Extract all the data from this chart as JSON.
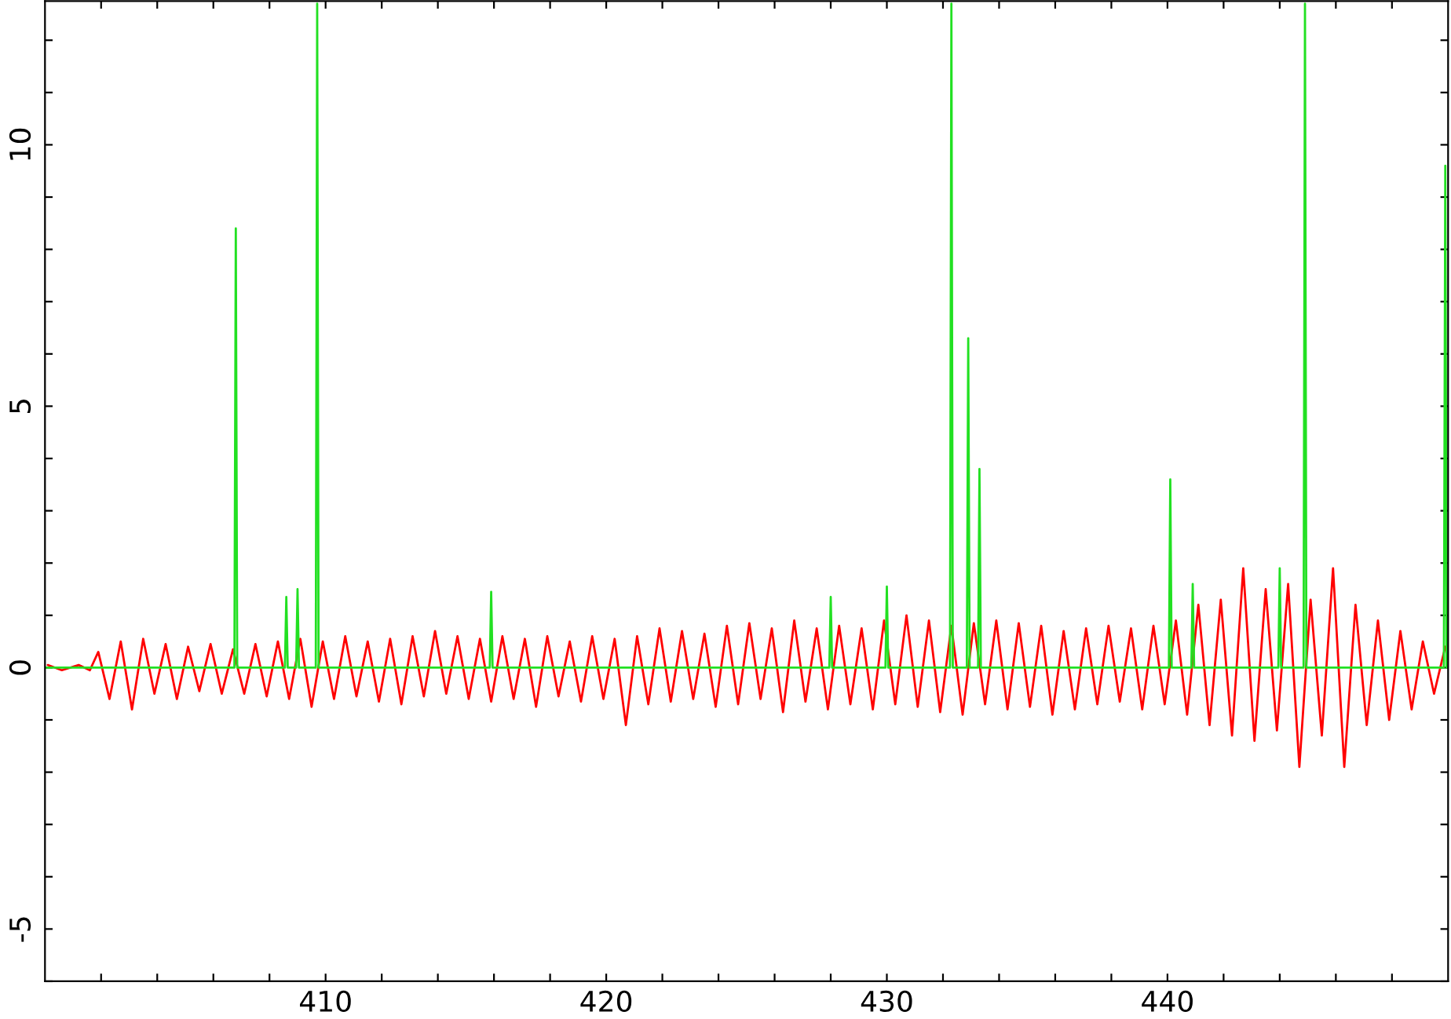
{
  "chart_data": {
    "type": "line",
    "xlim": [
      400,
      450
    ],
    "ylim": [
      -6,
      12.75
    ],
    "xticks": [
      {
        "value": 402,
        "label": null
      },
      {
        "value": 404,
        "label": null
      },
      {
        "value": 406,
        "label": null
      },
      {
        "value": 408,
        "label": null
      },
      410,
      {
        "value": 412,
        "label": null
      },
      {
        "value": 414,
        "label": null
      },
      {
        "value": 416,
        "label": null
      },
      {
        "value": 418,
        "label": null
      },
      420,
      {
        "value": 422,
        "label": null
      },
      {
        "value": 424,
        "label": null
      },
      {
        "value": 426,
        "label": null
      },
      {
        "value": 428,
        "label": null
      },
      430,
      {
        "value": 432,
        "label": null
      },
      {
        "value": 434,
        "label": null
      },
      {
        "value": 436,
        "label": null
      },
      {
        "value": 438,
        "label": null
      },
      440,
      {
        "value": 442,
        "label": null
      },
      {
        "value": 444,
        "label": null
      },
      {
        "value": 446,
        "label": null
      },
      {
        "value": 448,
        "label": null
      }
    ],
    "yticks": [
      {
        "value": -6,
        "label": null
      },
      -5,
      {
        "value": -4,
        "label": null
      },
      {
        "value": -3,
        "label": null
      },
      {
        "value": -2,
        "label": null
      },
      {
        "value": -1,
        "label": null
      },
      0,
      {
        "value": 1,
        "label": null
      },
      {
        "value": 2,
        "label": null
      },
      {
        "value": 3,
        "label": null
      },
      {
        "value": 4,
        "label": null
      },
      5,
      {
        "value": 6,
        "label": null
      },
      {
        "value": 7,
        "label": null
      },
      {
        "value": 8,
        "label": null
      },
      {
        "value": 9,
        "label": null
      },
      10,
      {
        "value": 11,
        "label": null
      },
      {
        "value": 12,
        "label": null
      }
    ],
    "grid": false,
    "legend": false,
    "marker": "none",
    "line_style": "solid",
    "series": [
      {
        "color": "#ff0000",
        "x": [
          400.1,
          400.6,
          401.2,
          401.6,
          401.9,
          402.3,
          402.7,
          403.1,
          403.5,
          403.9,
          404.3,
          404.7,
          405.1,
          405.5,
          405.9,
          406.3,
          406.7,
          407.1,
          407.5,
          407.9,
          408.3,
          408.7,
          409.1,
          409.5,
          409.9,
          410.3,
          410.7,
          411.1,
          411.5,
          411.9,
          412.3,
          412.7,
          413.1,
          413.5,
          413.9,
          414.3,
          414.7,
          415.1,
          415.5,
          415.9,
          416.3,
          416.7,
          417.1,
          417.5,
          417.9,
          418.3,
          418.7,
          419.1,
          419.5,
          419.9,
          420.3,
          420.7,
          421.1,
          421.5,
          421.9,
          422.3,
          422.7,
          423.1,
          423.5,
          423.9,
          424.3,
          424.7,
          425.1,
          425.5,
          425.9,
          426.3,
          426.7,
          427.1,
          427.5,
          427.9,
          428.3,
          428.7,
          429.1,
          429.5,
          429.9,
          430.3,
          430.7,
          431.1,
          431.5,
          431.9,
          432.3,
          432.7,
          433.1,
          433.5,
          433.9,
          434.3,
          434.7,
          435.1,
          435.5,
          435.9,
          436.3,
          436.7,
          437.1,
          437.5,
          437.9,
          438.3,
          438.7,
          439.1,
          439.5,
          439.9,
          440.3,
          440.7,
          441.1,
          441.5,
          441.9,
          442.3,
          442.7,
          443.1,
          443.5,
          443.9,
          444.3,
          444.7,
          445.1,
          445.5,
          445.9,
          446.3,
          446.7,
          447.1,
          447.5,
          447.9,
          448.3,
          448.7,
          449.1,
          449.5,
          449.9
        ],
        "values": [
          0.05,
          -0.05,
          0.05,
          -0.05,
          0.3,
          -0.6,
          0.5,
          -0.8,
          0.55,
          -0.5,
          0.45,
          -0.6,
          0.4,
          -0.45,
          0.45,
          -0.5,
          0.35,
          -0.5,
          0.45,
          -0.55,
          0.5,
          -0.6,
          0.55,
          -0.75,
          0.5,
          -0.6,
          0.6,
          -0.55,
          0.5,
          -0.65,
          0.55,
          -0.7,
          0.6,
          -0.55,
          0.7,
          -0.5,
          0.6,
          -0.6,
          0.55,
          -0.65,
          0.6,
          -0.6,
          0.55,
          -0.75,
          0.6,
          -0.55,
          0.5,
          -0.65,
          0.6,
          -0.6,
          0.55,
          -1.1,
          0.6,
          -0.7,
          0.75,
          -0.65,
          0.7,
          -0.6,
          0.65,
          -0.75,
          0.8,
          -0.7,
          0.85,
          -0.6,
          0.75,
          -0.85,
          0.9,
          -0.65,
          0.75,
          -0.8,
          0.8,
          -0.7,
          0.75,
          -0.8,
          0.9,
          -0.7,
          1.0,
          -0.75,
          0.9,
          -0.85,
          0.8,
          -0.9,
          0.85,
          -0.7,
          0.9,
          -0.8,
          0.85,
          -0.75,
          0.8,
          -0.9,
          0.7,
          -0.8,
          0.75,
          -0.7,
          0.8,
          -0.65,
          0.75,
          -0.8,
          0.8,
          -0.7,
          0.9,
          -0.9,
          1.2,
          -1.1,
          1.3,
          -1.3,
          1.9,
          -1.4,
          1.5,
          -1.2,
          1.6,
          -1.9,
          1.3,
          -1.3,
          1.9,
          -1.9,
          1.2,
          -1.1,
          0.9,
          -1.0,
          0.7,
          -0.8,
          0.5,
          -0.5,
          0.4
        ]
      },
      {
        "color": "#22e022",
        "x": [
          400,
          406.75,
          406.8,
          406.85,
          408.55,
          408.6,
          408.65,
          408.95,
          409.0,
          409.05,
          409.65,
          409.7,
          409.75,
          415.85,
          415.9,
          415.95,
          427.95,
          428.0,
          428.05,
          429.95,
          430.0,
          430.05,
          432.25,
          432.3,
          432.35,
          432.85,
          432.9,
          432.95,
          433.25,
          433.3,
          433.35,
          440.05,
          440.1,
          440.15,
          440.85,
          440.9,
          440.95,
          443.95,
          444.0,
          444.05,
          444.85,
          444.9,
          444.95,
          449.85,
          449.9,
          449.95
        ],
        "values": [
          0,
          0,
          8.4,
          0,
          0,
          1.35,
          0,
          0,
          1.5,
          0,
          0,
          12.7,
          0,
          0,
          1.45,
          0,
          0,
          1.35,
          0,
          0,
          1.55,
          0,
          0,
          12.7,
          0,
          0,
          6.3,
          0,
          0,
          3.8,
          0,
          0,
          3.6,
          0,
          0,
          1.6,
          0,
          0,
          1.9,
          0,
          0,
          12.7,
          0,
          0,
          9.6,
          0
        ]
      }
    ]
  }
}
